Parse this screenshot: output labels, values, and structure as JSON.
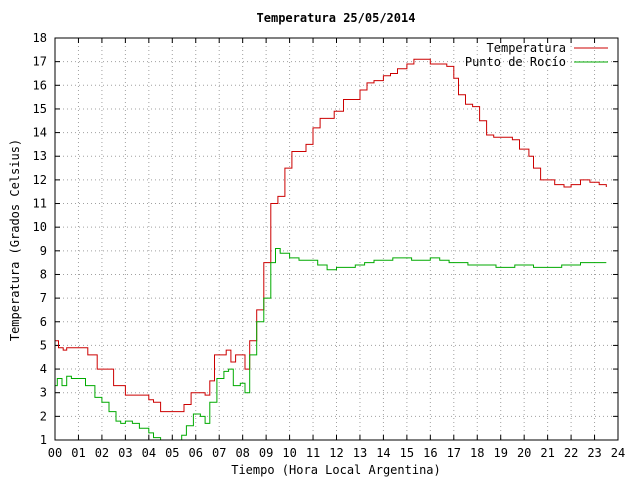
{
  "chart_data": {
    "type": "line",
    "title": "Temperatura 25/05/2014",
    "xlabel": "Tiempo (Hora Local Argentina)",
    "ylabel": "Temperatura (Grados Celsius)",
    "xlim": [
      0,
      24
    ],
    "ylim": [
      1,
      18
    ],
    "xticks": [
      "00",
      "01",
      "02",
      "03",
      "04",
      "05",
      "06",
      "07",
      "08",
      "09",
      "10",
      "11",
      "12",
      "13",
      "14",
      "15",
      "16",
      "17",
      "18",
      "19",
      "20",
      "21",
      "22",
      "23",
      "24"
    ],
    "yticks": [
      "1",
      "2",
      "3",
      "4",
      "5",
      "6",
      "7",
      "8",
      "9",
      "10",
      "11",
      "12",
      "13",
      "14",
      "15",
      "16",
      "17",
      "18"
    ],
    "grid": true,
    "legend_position": "top-right",
    "series": [
      {
        "name": "Temperatura",
        "color": "#cc0000",
        "x": [
          0.0,
          0.15,
          0.35,
          0.5,
          1.1,
          1.4,
          1.8,
          2.1,
          2.5,
          3.0,
          3.5,
          4.0,
          4.2,
          4.5,
          5.0,
          5.3,
          5.5,
          5.8,
          6.2,
          6.4,
          6.6,
          6.8,
          7.1,
          7.3,
          7.5,
          7.7,
          7.9,
          8.1,
          8.3,
          8.6,
          8.9,
          9.2,
          9.5,
          9.8,
          10.1,
          10.4,
          10.7,
          11.0,
          11.3,
          11.6,
          11.9,
          12.3,
          12.6,
          13.0,
          13.3,
          13.6,
          14.0,
          14.3,
          14.6,
          15.0,
          15.3,
          15.6,
          16.0,
          16.3,
          16.7,
          17.0,
          17.2,
          17.5,
          17.8,
          18.1,
          18.4,
          18.7,
          19.1,
          19.5,
          19.8,
          20.2,
          20.4,
          20.7,
          21.0,
          21.3,
          21.7,
          22.0,
          22.4,
          22.8,
          23.2,
          23.5
        ],
        "y": [
          5.2,
          4.9,
          4.8,
          4.9,
          4.9,
          4.6,
          4.0,
          4.0,
          3.3,
          2.9,
          2.9,
          2.7,
          2.6,
          2.2,
          2.2,
          2.2,
          2.5,
          3.0,
          3.0,
          2.9,
          3.5,
          4.6,
          4.6,
          4.8,
          4.3,
          4.6,
          4.6,
          4.0,
          5.2,
          6.5,
          8.5,
          11.0,
          11.3,
          12.5,
          13.2,
          13.2,
          13.5,
          14.2,
          14.6,
          14.6,
          14.9,
          15.4,
          15.4,
          15.8,
          16.1,
          16.2,
          16.4,
          16.5,
          16.7,
          16.9,
          17.1,
          17.1,
          16.9,
          16.9,
          16.8,
          16.3,
          15.6,
          15.2,
          15.1,
          14.5,
          13.9,
          13.8,
          13.8,
          13.7,
          13.3,
          13.0,
          12.5,
          12.0,
          12.0,
          11.8,
          11.7,
          11.8,
          12.0,
          11.9,
          11.8,
          11.7
        ]
      },
      {
        "name": "Punto de Rocío",
        "color": "#00aa00",
        "x": [
          0.0,
          0.1,
          0.3,
          0.5,
          0.7,
          1.0,
          1.3,
          1.7,
          2.0,
          2.3,
          2.6,
          2.8,
          3.0,
          3.3,
          3.6,
          4.0,
          4.2,
          4.5,
          4.8,
          5.1,
          5.4,
          5.6,
          5.9,
          6.2,
          6.4,
          6.6,
          6.9,
          7.2,
          7.4,
          7.6,
          7.9,
          8.1,
          8.3,
          8.6,
          8.9,
          9.2,
          9.4,
          9.6,
          10.0,
          10.4,
          10.8,
          11.2,
          11.6,
          12.0,
          12.4,
          12.8,
          13.2,
          13.6,
          14.0,
          14.4,
          14.8,
          15.2,
          15.6,
          16.0,
          16.4,
          16.8,
          17.2,
          17.6,
          18.0,
          18.4,
          18.8,
          19.2,
          19.6,
          20.0,
          20.4,
          20.8,
          21.2,
          21.6,
          22.0,
          22.4,
          22.8,
          23.2,
          23.5
        ],
        "y": [
          3.3,
          3.6,
          3.3,
          3.7,
          3.6,
          3.6,
          3.3,
          2.8,
          2.6,
          2.2,
          1.8,
          1.7,
          1.8,
          1.7,
          1.5,
          1.3,
          1.1,
          1.0,
          0.9,
          0.9,
          1.2,
          1.6,
          2.1,
          2.0,
          1.7,
          2.6,
          3.6,
          3.9,
          4.0,
          3.3,
          3.4,
          3.0,
          4.6,
          6.0,
          7.0,
          8.5,
          9.1,
          8.9,
          8.7,
          8.6,
          8.6,
          8.4,
          8.2,
          8.3,
          8.3,
          8.4,
          8.5,
          8.6,
          8.6,
          8.7,
          8.7,
          8.6,
          8.6,
          8.7,
          8.6,
          8.5,
          8.5,
          8.4,
          8.4,
          8.4,
          8.3,
          8.3,
          8.4,
          8.4,
          8.3,
          8.3,
          8.3,
          8.4,
          8.4,
          8.5,
          8.5,
          8.5,
          8.5
        ]
      }
    ]
  }
}
